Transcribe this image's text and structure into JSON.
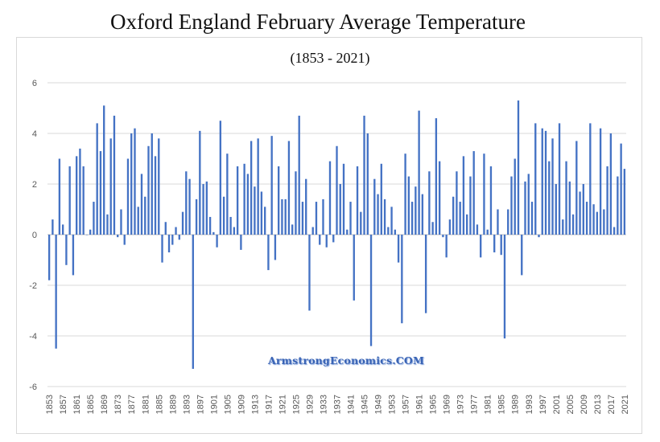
{
  "chart_data": {
    "type": "bar",
    "title": "Oxford England February Average Temperature",
    "subtitle": "(1853 - 2021)",
    "ylim": [
      -6,
      6
    ],
    "y_ticks": [
      6,
      4,
      2,
      0,
      -2,
      -4,
      -6
    ],
    "x_start": 1853,
    "x_end": 2021,
    "x_tick_labels": [
      "1853",
      "1857",
      "1861",
      "1865",
      "1869",
      "1873",
      "1877",
      "1881",
      "1885",
      "1889",
      "1893",
      "1897",
      "1901",
      "1905",
      "1909",
      "1913",
      "1917",
      "1921",
      "1925",
      "1929",
      "1933",
      "1937",
      "1941",
      "1945",
      "1949",
      "1953",
      "1957",
      "1961",
      "1965",
      "1969",
      "1973",
      "1977",
      "1981",
      "1985",
      "1989",
      "1993",
      "1997",
      "2001",
      "2005",
      "2009",
      "2013",
      "2017",
      "2021"
    ],
    "grid": true,
    "bar_color": "#4472c4",
    "values": [
      -1.8,
      0.6,
      -4.5,
      3.0,
      0.4,
      -1.2,
      2.7,
      -1.6,
      3.1,
      3.4,
      2.7,
      0.0,
      0.2,
      1.3,
      4.4,
      3.3,
      5.1,
      0.8,
      3.8,
      4.7,
      -0.1,
      1.0,
      -0.4,
      3.0,
      4.0,
      4.2,
      1.1,
      2.4,
      1.5,
      3.5,
      4.0,
      3.1,
      3.8,
      -1.1,
      0.5,
      -0.7,
      -0.4,
      0.3,
      -0.2,
      0.9,
      2.5,
      2.2,
      -5.3,
      1.4,
      4.1,
      2.0,
      2.1,
      0.7,
      0.1,
      -0.5,
      4.5,
      1.5,
      3.2,
      0.7,
      0.3,
      2.7,
      -0.6,
      2.8,
      2.4,
      3.7,
      1.9,
      3.8,
      1.7,
      1.1,
      -1.4,
      3.9,
      -1.0,
      2.7,
      1.4,
      1.4,
      3.7,
      0.4,
      2.5,
      4.7,
      1.3,
      2.2,
      -3.0,
      0.3,
      1.3,
      -0.4,
      1.4,
      -0.5,
      2.9,
      -0.3,
      3.5,
      2.0,
      2.8,
      0.2,
      1.3,
      -2.6,
      2.7,
      0.9,
      4.7,
      4.0,
      -4.4,
      2.2,
      1.6,
      2.8,
      1.4,
      0.3,
      1.1,
      0.2,
      -1.1,
      -3.5,
      3.2,
      2.3,
      1.3,
      1.9,
      4.9,
      1.6,
      -3.1,
      2.5,
      0.5,
      4.6,
      2.9,
      -0.1,
      -0.9,
      0.6,
      1.5,
      2.5,
      1.3,
      3.1,
      0.8,
      2.3,
      3.3,
      0.4,
      -0.9,
      3.2,
      0.2,
      2.7,
      -0.7,
      1.0,
      -0.8,
      -4.1,
      1.0,
      2.3,
      3.0,
      5.3,
      -1.6,
      2.1,
      2.4,
      1.3,
      4.4,
      -0.1,
      4.2,
      4.1,
      2.9,
      3.8,
      2.0,
      4.4,
      0.6,
      2.9,
      2.1,
      0.8,
      3.7,
      1.7,
      2.0,
      1.3,
      4.4,
      1.2,
      0.9,
      4.2,
      1.0,
      2.7,
      4.0,
      0.3,
      2.3,
      3.6,
      2.6
    ]
  },
  "watermark": "ArmstrongEconomics.COM"
}
